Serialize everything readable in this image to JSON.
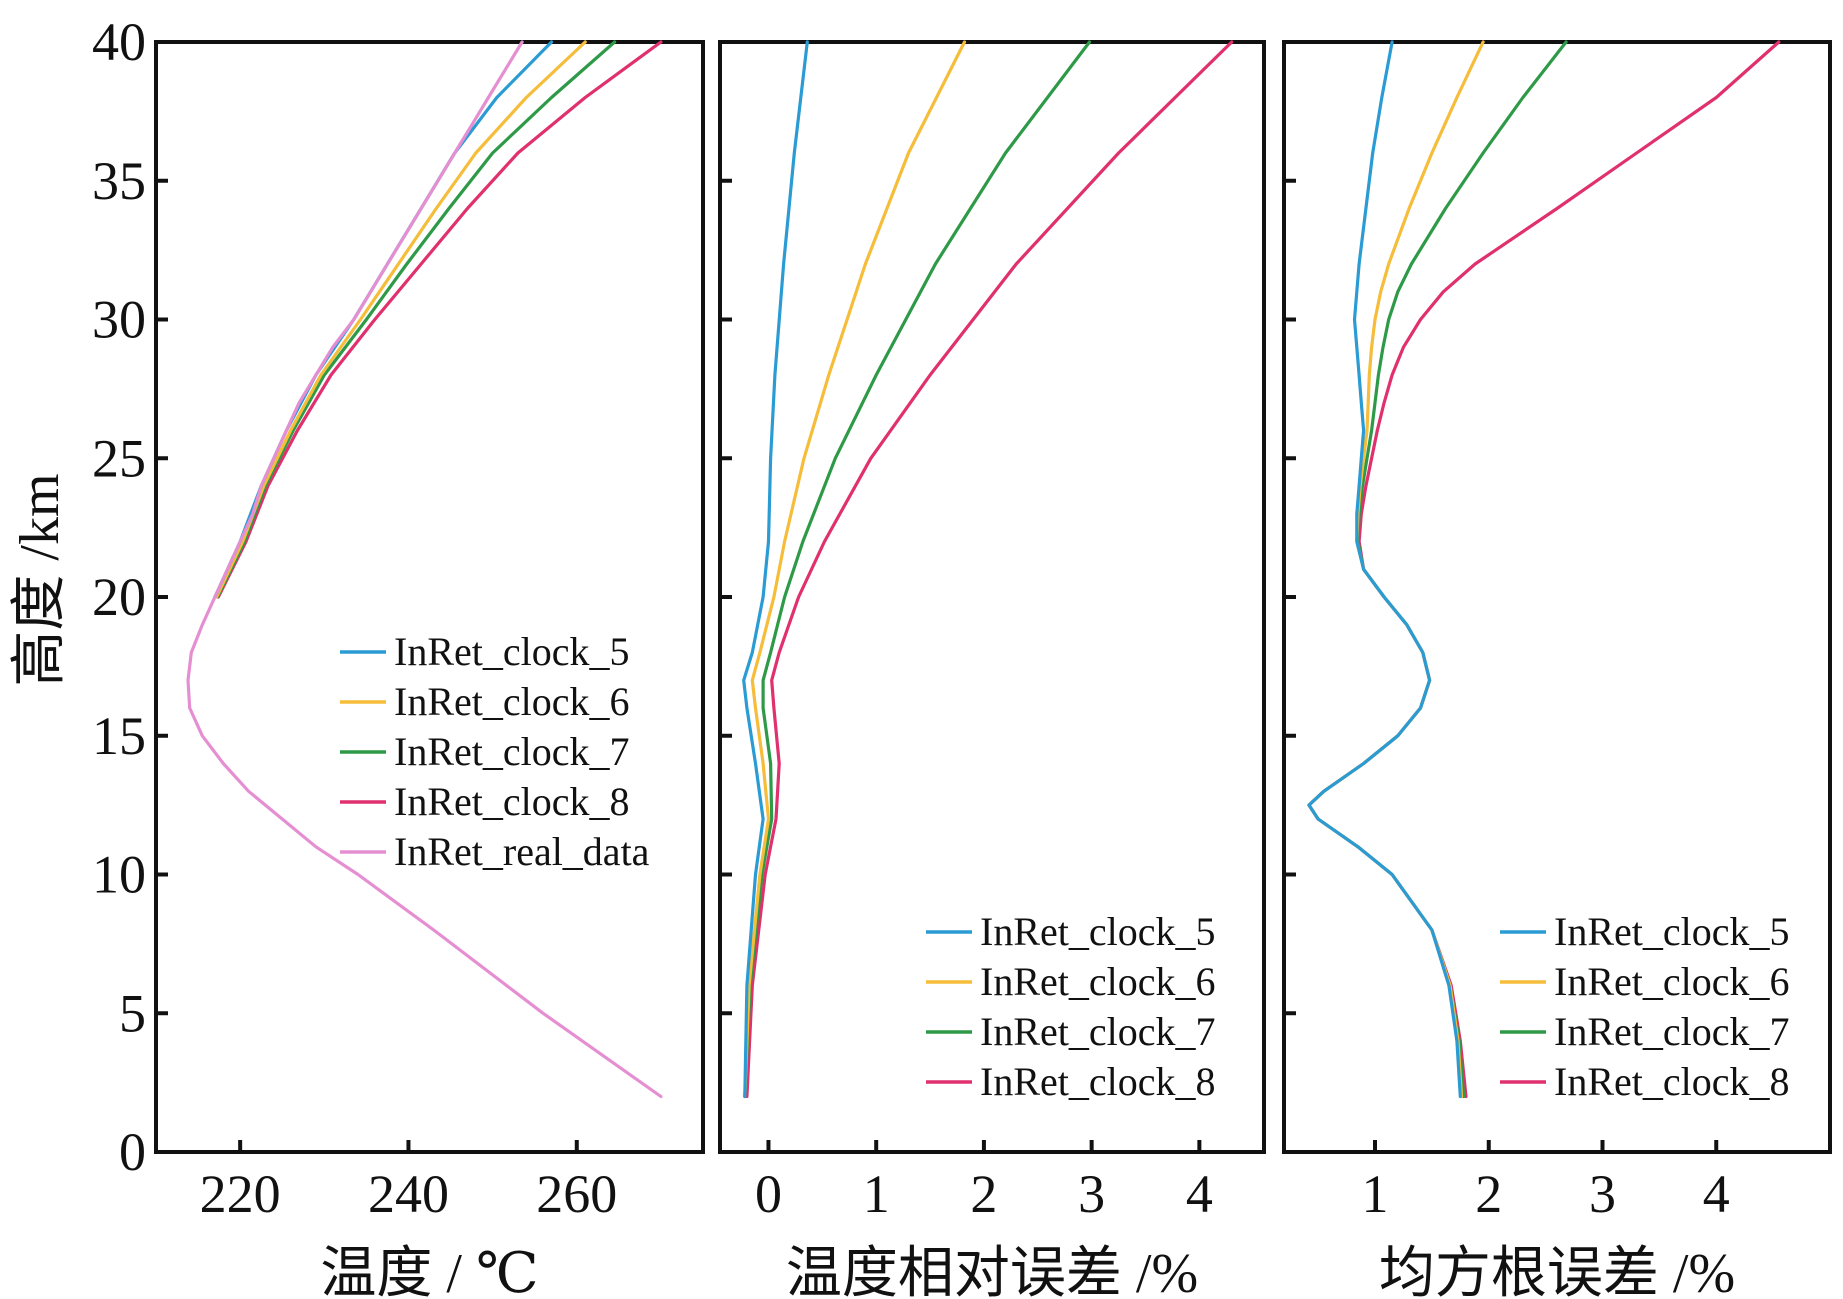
{
  "colors": {
    "InRet_clock_5": "#2b9bd4",
    "InRet_clock_6": "#f5bd3a",
    "InRet_clock_7": "#2e9a48",
    "InRet_clock_8": "#e0306e",
    "InRet_real_data": "#e58fd2"
  },
  "y_axis": {
    "label": "高度 /km",
    "ticks": [
      0,
      5,
      10,
      15,
      20,
      25,
      30,
      35,
      40
    ],
    "tick_labels": [
      "0",
      "5",
      "10",
      "15",
      "20",
      "25",
      "30",
      "35",
      "40"
    ],
    "ylim": [
      0,
      40
    ]
  },
  "chart_data": [
    {
      "type": "line",
      "panel": "temperature",
      "xlabel": "温度 / ℃",
      "ylabel": "高度 /km",
      "xlim": [
        210,
        275
      ],
      "ylim": [
        0,
        40
      ],
      "xticks": [
        220,
        240,
        260
      ],
      "xtick_labels": [
        "220",
        "240",
        "260"
      ],
      "legend_position": "center-right",
      "legend": [
        "InRet_clock_5",
        "InRet_clock_6",
        "InRet_clock_7",
        "InRet_clock_8",
        "InRet_real_data"
      ],
      "series": [
        {
          "name": "InRet_real_data",
          "y": [
            2,
            5,
            8,
            10,
            11,
            12,
            13,
            14,
            15,
            16,
            17,
            18,
            19,
            20,
            21,
            22,
            23,
            24,
            25,
            26,
            27,
            28,
            29,
            30,
            31,
            32,
            33,
            34,
            35,
            36,
            37,
            38,
            39,
            40
          ],
          "x": [
            270,
            256,
            243,
            234,
            229,
            225,
            221,
            218,
            215.5,
            214,
            213.8,
            214.2,
            215.5,
            217,
            218.5,
            220,
            221.5,
            222.5,
            224,
            225.5,
            227,
            229,
            231,
            233.5,
            235.5,
            237.5,
            239.5,
            241.5,
            243.5,
            245.5,
            247.5,
            249.5,
            251.5,
            253.5
          ]
        },
        {
          "name": "InRet_clock_5",
          "y": [
            20,
            22,
            24,
            26,
            28,
            30,
            32,
            34,
            36,
            38,
            40
          ],
          "x": [
            217,
            220,
            222.5,
            225.5,
            229,
            233.5,
            237.5,
            241.5,
            245.5,
            250.5,
            257
          ]
        },
        {
          "name": "InRet_clock_6",
          "y": [
            20,
            22,
            24,
            26,
            28,
            30,
            32,
            34,
            36,
            38,
            40
          ],
          "x": [
            217.2,
            220.3,
            222.8,
            226,
            229.6,
            234.3,
            238.8,
            243.3,
            248,
            254,
            261
          ]
        },
        {
          "name": "InRet_clock_7",
          "y": [
            20,
            22,
            24,
            26,
            28,
            30,
            32,
            34,
            36,
            38,
            40
          ],
          "x": [
            217.3,
            220.5,
            223,
            226.3,
            230,
            235,
            239.8,
            244.8,
            250,
            257,
            264.5
          ]
        },
        {
          "name": "InRet_clock_8",
          "y": [
            20,
            22,
            24,
            26,
            28,
            30,
            32,
            34,
            36,
            38,
            40
          ],
          "x": [
            217.4,
            220.7,
            223.3,
            226.8,
            230.8,
            236,
            241.5,
            247,
            253,
            261,
            270
          ]
        }
      ]
    },
    {
      "type": "line",
      "panel": "relative-error",
      "xlabel": "温度相对误差 /%",
      "ylabel": "",
      "xlim": [
        -0.45,
        4.6
      ],
      "ylim": [
        0,
        40
      ],
      "xticks": [
        0,
        1,
        2,
        3,
        4
      ],
      "xtick_labels": [
        "0",
        "1",
        "2",
        "3",
        "4"
      ],
      "legend_position": "bottom-right",
      "legend": [
        "InRet_clock_5",
        "InRet_clock_6",
        "InRet_clock_7",
        "InRet_clock_8"
      ],
      "series": [
        {
          "name": "InRet_clock_5",
          "y": [
            2,
            6,
            10,
            12,
            14,
            16,
            17,
            18,
            20,
            22,
            25,
            28,
            32,
            36,
            40
          ],
          "x": [
            -0.22,
            -0.2,
            -0.12,
            -0.05,
            -0.12,
            -0.2,
            -0.23,
            -0.15,
            -0.05,
            0.0,
            0.02,
            0.06,
            0.14,
            0.24,
            0.36
          ]
        },
        {
          "name": "InRet_clock_6",
          "y": [
            2,
            6,
            10,
            12,
            14,
            16,
            17,
            18,
            20,
            22,
            25,
            28,
            32,
            36,
            40
          ],
          "x": [
            -0.22,
            -0.18,
            -0.08,
            0.0,
            -0.05,
            -0.12,
            -0.15,
            -0.08,
            0.05,
            0.15,
            0.33,
            0.56,
            0.9,
            1.3,
            1.82
          ]
        },
        {
          "name": "InRet_clock_7",
          "y": [
            2,
            6,
            10,
            12,
            14,
            16,
            17,
            18,
            20,
            22,
            25,
            28,
            32,
            36,
            40
          ],
          "x": [
            -0.22,
            -0.17,
            -0.06,
            0.03,
            0.02,
            -0.05,
            -0.05,
            0.02,
            0.15,
            0.32,
            0.62,
            1.0,
            1.55,
            2.2,
            2.98
          ]
        },
        {
          "name": "InRet_clock_8",
          "y": [
            2,
            6,
            10,
            12,
            14,
            16,
            17,
            18,
            20,
            22,
            25,
            28,
            32,
            36,
            40
          ],
          "x": [
            -0.2,
            -0.15,
            -0.03,
            0.07,
            0.1,
            0.05,
            0.03,
            0.1,
            0.28,
            0.52,
            0.95,
            1.5,
            2.3,
            3.25,
            4.3
          ]
        }
      ]
    },
    {
      "type": "line",
      "panel": "rms-error",
      "xlabel": "均方根误差 /%",
      "ylabel": "",
      "xlim": [
        0.2,
        5.0
      ],
      "ylim": [
        0,
        40
      ],
      "xticks": [
        1,
        2,
        3,
        4
      ],
      "xtick_labels": [
        "1",
        "2",
        "3",
        "4"
      ],
      "legend_position": "bottom-right",
      "legend": [
        "InRet_clock_5",
        "InRet_clock_6",
        "InRet_clock_7",
        "InRet_clock_8"
      ],
      "series": [
        {
          "name": "InRet_clock_5",
          "y": [
            2,
            4,
            6,
            8,
            10,
            11,
            12,
            12.5,
            13,
            14,
            15,
            16,
            17,
            18,
            19,
            20,
            21,
            22,
            23,
            24,
            25,
            26,
            27,
            28,
            29,
            30,
            31,
            32,
            34,
            36,
            38,
            40
          ],
          "x": [
            1.75,
            1.72,
            1.65,
            1.5,
            1.15,
            0.85,
            0.5,
            0.42,
            0.55,
            0.9,
            1.2,
            1.4,
            1.48,
            1.42,
            1.28,
            1.08,
            0.9,
            0.84,
            0.84,
            0.86,
            0.88,
            0.9,
            0.88,
            0.86,
            0.84,
            0.82,
            0.84,
            0.86,
            0.92,
            0.98,
            1.06,
            1.15
          ]
        },
        {
          "name": "InRet_clock_6",
          "y": [
            2,
            4,
            6,
            8,
            10,
            11,
            12,
            12.5,
            13,
            14,
            15,
            16,
            17,
            18,
            19,
            20,
            21,
            22,
            23,
            24,
            25,
            26,
            27,
            28,
            29,
            30,
            31,
            32,
            34,
            36,
            38,
            40
          ],
          "x": [
            1.76,
            1.73,
            1.66,
            1.5,
            1.15,
            0.85,
            0.5,
            0.42,
            0.55,
            0.9,
            1.2,
            1.4,
            1.48,
            1.42,
            1.28,
            1.08,
            0.9,
            0.84,
            0.85,
            0.87,
            0.9,
            0.93,
            0.94,
            0.95,
            0.97,
            1.0,
            1.05,
            1.12,
            1.3,
            1.5,
            1.72,
            1.95
          ]
        },
        {
          "name": "InRet_clock_7",
          "y": [
            2,
            4,
            6,
            8,
            10,
            11,
            12,
            12.5,
            13,
            14,
            15,
            16,
            17,
            18,
            19,
            20,
            21,
            22,
            23,
            24,
            25,
            26,
            27,
            28,
            29,
            30,
            31,
            32,
            34,
            36,
            38,
            40
          ],
          "x": [
            1.78,
            1.74,
            1.66,
            1.5,
            1.15,
            0.85,
            0.5,
            0.42,
            0.55,
            0.9,
            1.2,
            1.4,
            1.48,
            1.42,
            1.28,
            1.08,
            0.9,
            0.85,
            0.86,
            0.89,
            0.93,
            0.97,
            1.0,
            1.03,
            1.07,
            1.12,
            1.2,
            1.32,
            1.62,
            1.95,
            2.3,
            2.68
          ]
        },
        {
          "name": "InRet_clock_8",
          "y": [
            2,
            4,
            6,
            8,
            10,
            11,
            12,
            12.5,
            13,
            14,
            15,
            16,
            17,
            18,
            19,
            20,
            21,
            22,
            23,
            24,
            25,
            26,
            27,
            28,
            29,
            30,
            31,
            32,
            34,
            36,
            38,
            40
          ],
          "x": [
            1.8,
            1.75,
            1.67,
            1.5,
            1.15,
            0.85,
            0.5,
            0.42,
            0.55,
            0.9,
            1.2,
            1.4,
            1.48,
            1.42,
            1.28,
            1.08,
            0.9,
            0.86,
            0.88,
            0.92,
            0.97,
            1.02,
            1.08,
            1.15,
            1.25,
            1.4,
            1.6,
            1.88,
            2.6,
            3.3,
            4.0,
            4.55
          ]
        }
      ]
    }
  ]
}
